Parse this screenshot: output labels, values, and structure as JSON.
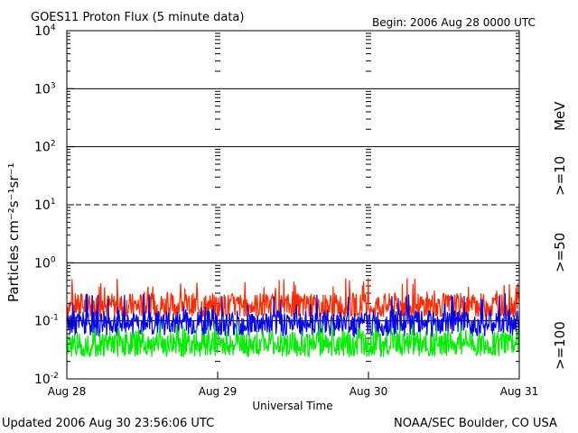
{
  "chart_data": {
    "type": "line",
    "title": "GOES11 Proton Flux (5 minute data)",
    "begin_label": "Begin: 2006 Aug 28 0000 UTC",
    "ylabel": "Particles cm⁻²s⁻¹sr⁻¹",
    "xlabel": "Universal Time",
    "y_scale": "log",
    "ylim": [
      0.01,
      10000
    ],
    "y_ticks": [
      {
        "value": 0.01,
        "base": "10",
        "exp": "-2"
      },
      {
        "value": 0.1,
        "base": "10",
        "exp": "-1"
      },
      {
        "value": 1,
        "base": "10",
        "exp": "0"
      },
      {
        "value": 10,
        "base": "10",
        "exp": "1"
      },
      {
        "value": 100,
        "base": "10",
        "exp": "2"
      },
      {
        "value": 1000,
        "base": "10",
        "exp": "3"
      },
      {
        "value": 10000,
        "base": "10",
        "exp": "4"
      }
    ],
    "x_ticks": [
      "Aug 28",
      "Aug 29",
      "Aug 30",
      "Aug 31"
    ],
    "grid": true,
    "legend_placement": "right",
    "legend_unit": "MeV",
    "series": [
      {
        "name": ">=10",
        "color": "#ff2a00",
        "typical": 0.18,
        "min": 0.12,
        "max": 0.55
      },
      {
        "name": ">=50",
        "color": "#0000ee",
        "typical": 0.09,
        "min": 0.05,
        "max": 0.3
      },
      {
        "name": ">=100",
        "color": "#00ee00",
        "typical": 0.04,
        "min": 0.02,
        "max": 0.1
      }
    ]
  },
  "footer": {
    "updated": "Updated 2006 Aug 30 23:56:06 UTC",
    "credit": "NOAA/SEC Boulder, CO USA"
  }
}
